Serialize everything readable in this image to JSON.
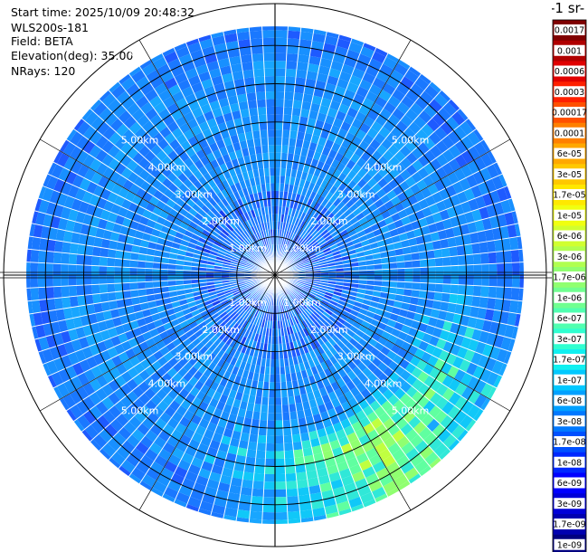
{
  "info": {
    "start_time": "Start time: 2025/10/09 20:48:32",
    "instrument": "WLS200s-181",
    "field": "Field: BETA",
    "elevation": "Elevation(deg): 35.00",
    "nrays": "NRays: 120"
  },
  "chart_data": {
    "type": "heatmap",
    "projection": "polar-ppi",
    "n_rays": 120,
    "max_range_km": 6.5,
    "range_rings_km": [
      1,
      2,
      3,
      4,
      5,
      6
    ],
    "range_labels": [
      "1.00km",
      "2.00km",
      "3.00km",
      "4.00km",
      "5.00km"
    ],
    "colorbar_title": "-1 sr-",
    "colorbar_ticks": [
      "0.0017",
      "0.001",
      "0.0006",
      "0.0003",
      "0.00017",
      "0.0001",
      "6e-05",
      "3e-05",
      "1.7e-05",
      "1e-05",
      "6e-06",
      "3e-06",
      "1.7e-06",
      "1e-06",
      "6e-07",
      "3e-07",
      "1.7e-07",
      "1e-07",
      "6e-08",
      "3e-08",
      "1.7e-08",
      "1e-08",
      "6e-09",
      "3e-09",
      "1.7e-09",
      "1e-09"
    ],
    "colorbar_colors": [
      "#800000",
      "#b00000",
      "#e00000",
      "#ff2000",
      "#ff5000",
      "#ff8000",
      "#ffa800",
      "#ffc800",
      "#ffe800",
      "#f0ff10",
      "#d0ff30",
      "#b0ff50",
      "#90ff70",
      "#70ff90",
      "#50ffb0",
      "#30ffd0",
      "#10f0f0",
      "#00c8ff",
      "#00a0ff",
      "#0078ff",
      "#0050ff",
      "#0028ff",
      "#0000ff",
      "#0000d8",
      "#0000b0",
      "#000080"
    ],
    "dominant_value": "3e-08",
    "enhanced_sector": {
      "azimuth_deg": [
        95,
        200
      ],
      "range_km": [
        3.8,
        6.5
      ],
      "peak_value": "1e-05"
    }
  }
}
